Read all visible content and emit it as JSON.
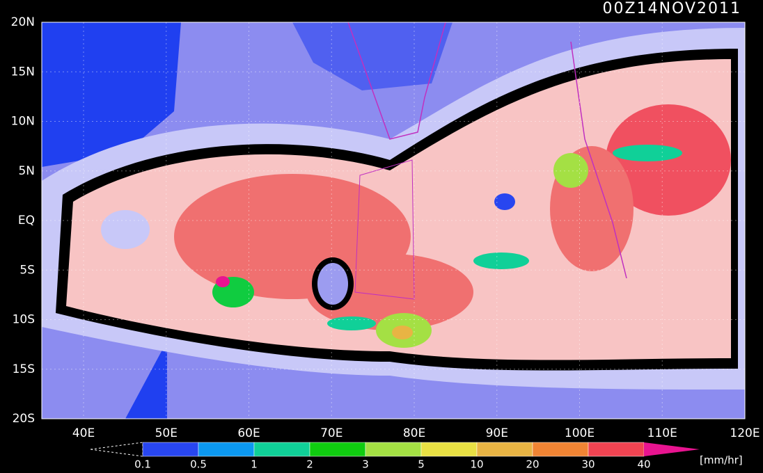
{
  "timestamp": "00Z14NOV2011",
  "lat_labels": [
    "20N",
    "15N",
    "10N",
    "5N",
    "EQ",
    "5S",
    "10S",
    "15S",
    "20S"
  ],
  "lon_labels": [
    "40E",
    "50E",
    "60E",
    "70E",
    "80E",
    "90E",
    "100E",
    "110E",
    "120E"
  ],
  "colorbar": {
    "labels": [
      "0.1",
      "0.5",
      "1",
      "2",
      "3",
      "5",
      "10",
      "20",
      "30",
      "40"
    ],
    "colors": [
      "#2846f0",
      "#0c98f0",
      "#10d098",
      "#10cc10",
      "#a4e044",
      "#e8e044",
      "#e8b444",
      "#f08434",
      "#f04452",
      "#e81490"
    ],
    "unit": "[mm/hr]"
  }
}
